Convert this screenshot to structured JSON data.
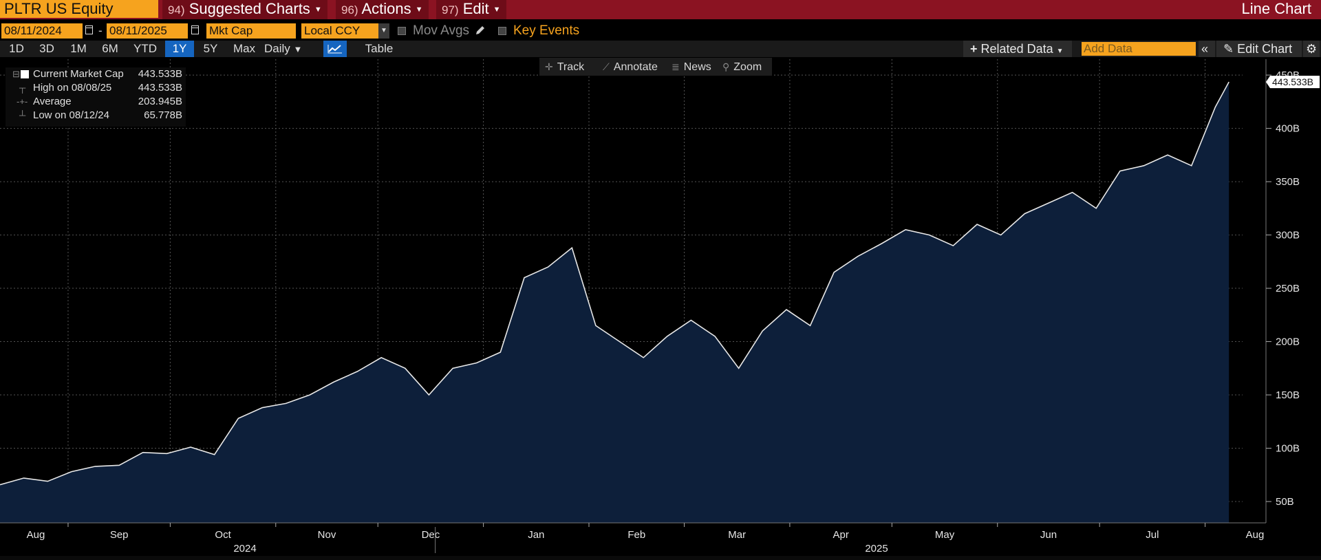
{
  "titlebar": {
    "ticker": "PLTR US Equity",
    "suggested_num": "94)",
    "suggested_label": "Suggested Charts",
    "actions_num": "96)",
    "actions_label": "Actions",
    "edit_num": "97)",
    "edit_label": "Edit",
    "chart_kind": "Line Chart"
  },
  "controls": {
    "start_date": "08/11/2024",
    "date_sep": "-",
    "end_date": "08/11/2025",
    "field": "Mkt Cap",
    "currency": "Local CCY",
    "mov_avgs": "Mov Avgs",
    "key_events": "Key Events"
  },
  "range_buttons": [
    "1D",
    "3D",
    "1M",
    "6M",
    "YTD",
    "1Y",
    "5Y",
    "Max"
  ],
  "range_selected": "1Y",
  "period": "Daily",
  "table_label": "Table",
  "related_data": "Related Data",
  "add_data_placeholder": "Add Data",
  "edit_chart": "Edit Chart",
  "chart_tools": {
    "track": "Track",
    "annotate": "Annotate",
    "news": "News",
    "zoom": "Zoom"
  },
  "legend": {
    "current_label": "Current Market Cap",
    "current_value": "443.533B",
    "high_label": "High on 08/08/25",
    "high_value": "443.533B",
    "avg_label": "Average",
    "avg_value": "203.945B",
    "low_label": "Low on 08/12/24",
    "low_value": "65.778B"
  },
  "colors": {
    "title_bar": "#8b1322",
    "accent_orange": "#f6a31e",
    "selected_blue": "#1565c0",
    "area_fill": "#0d1f3a",
    "line": "#e8e8e8"
  },
  "chart_data": {
    "type": "area",
    "series": [
      {
        "name": "Current Market Cap",
        "x": [
          "2024-08-12",
          "2024-08-19",
          "2024-08-26",
          "2024-09-02",
          "2024-09-09",
          "2024-09-16",
          "2024-09-23",
          "2024-09-30",
          "2024-10-07",
          "2024-10-14",
          "2024-10-21",
          "2024-10-28",
          "2024-11-04",
          "2024-11-11",
          "2024-11-18",
          "2024-11-25",
          "2024-12-02",
          "2024-12-09",
          "2024-12-16",
          "2024-12-23",
          "2024-12-30",
          "2025-01-06",
          "2025-01-13",
          "2025-01-20",
          "2025-01-27",
          "2025-02-03",
          "2025-02-10",
          "2025-02-17",
          "2025-02-24",
          "2025-03-03",
          "2025-03-10",
          "2025-03-17",
          "2025-03-24",
          "2025-03-31",
          "2025-04-07",
          "2025-04-14",
          "2025-04-21",
          "2025-04-28",
          "2025-05-05",
          "2025-05-12",
          "2025-05-19",
          "2025-05-26",
          "2025-06-02",
          "2025-06-09",
          "2025-06-16",
          "2025-06-23",
          "2025-06-30",
          "2025-07-07",
          "2025-07-14",
          "2025-07-21",
          "2025-07-28",
          "2025-08-04",
          "2025-08-08"
        ],
        "values": [
          65.778,
          72,
          69,
          78,
          83,
          84,
          96,
          95,
          101,
          94,
          128,
          138,
          142,
          150,
          162,
          172,
          185,
          175,
          150,
          175,
          180,
          190,
          260,
          270,
          288,
          215,
          200,
          185,
          205,
          220,
          205,
          175,
          210,
          230,
          215,
          265,
          280,
          292,
          305,
          300,
          290,
          310,
          300,
          320,
          330,
          340,
          325,
          360,
          365,
          375,
          365,
          420,
          443.533
        ]
      }
    ],
    "ylim": [
      30,
      452
    ],
    "yticks": [
      50,
      100,
      150,
      200,
      250,
      300,
      350,
      400,
      450
    ],
    "ytick_labels": [
      "50B",
      "100B",
      "150B",
      "200B",
      "250B",
      "300B",
      "350B",
      "400B",
      "450B"
    ],
    "xmonths": [
      "Aug",
      "Sep",
      "Oct",
      "Nov",
      "Dec",
      "Jan",
      "Feb",
      "Mar",
      "Apr",
      "May",
      "Jun",
      "Jul",
      "Aug"
    ],
    "xyears": [
      "2024",
      "2025"
    ],
    "last_value_label": "443.533B",
    "grid": true
  }
}
